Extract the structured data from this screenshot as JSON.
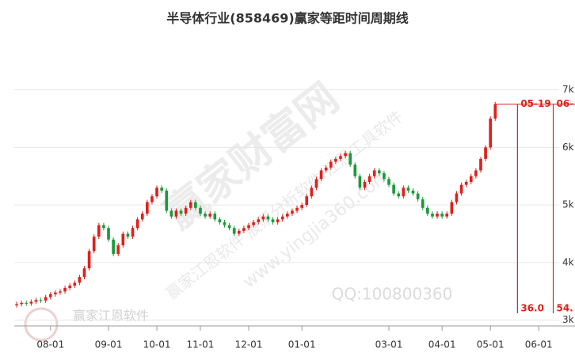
{
  "chart_data": {
    "type": "candlestick",
    "title": "半导体行业(858469)赢家等距时间周期线",
    "x": [
      0,
      1,
      2,
      3,
      4,
      5,
      6,
      7,
      8,
      9,
      10,
      11,
      12,
      13,
      14,
      15,
      16,
      17,
      18,
      19,
      20,
      21,
      22,
      23,
      24,
      25,
      26,
      27,
      28,
      29,
      30,
      31,
      32,
      33,
      34,
      35,
      36,
      37,
      38,
      39,
      40,
      41,
      42,
      43,
      44,
      45,
      46,
      47,
      48,
      49,
      50,
      51,
      52,
      53,
      54,
      55,
      56,
      57,
      58,
      59,
      60,
      61,
      62,
      63,
      64,
      65,
      66,
      67,
      68,
      69,
      70,
      71,
      72,
      73,
      74,
      75,
      76,
      77,
      78,
      79,
      80,
      81,
      82,
      83,
      84,
      85,
      86,
      87,
      88,
      89,
      90,
      91,
      92,
      93,
      94,
      95,
      96,
      97,
      98,
      99
    ],
    "open": [
      3260,
      3280,
      3300,
      3290,
      3320,
      3350,
      3340,
      3400,
      3450,
      3480,
      3500,
      3560,
      3600,
      3650,
      3750,
      3900,
      4200,
      4450,
      4650,
      4600,
      4400,
      4150,
      4300,
      4500,
      4450,
      4600,
      4750,
      4850,
      5050,
      5150,
      5300,
      5250,
      4900,
      4800,
      4900,
      4850,
      4950,
      5050,
      4950,
      4850,
      4800,
      4850,
      4750,
      4700,
      4650,
      4600,
      4500,
      4550,
      4600,
      4650,
      4700,
      4750,
      4800,
      4750,
      4700,
      4750,
      4800,
      4850,
      4900,
      4950,
      5000,
      5150,
      5300,
      5450,
      5600,
      5650,
      5750,
      5800,
      5850,
      5900,
      5700,
      5500,
      5300,
      5400,
      5500,
      5600,
      5550,
      5450,
      5350,
      5200,
      5150,
      5300,
      5250,
      5200,
      5100,
      4950,
      4850,
      4800,
      4850,
      4800,
      4850,
      5050,
      5200,
      5350,
      5400,
      5500,
      5600,
      5800,
      6000,
      6500
    ],
    "high": [
      3320,
      3340,
      3340,
      3360,
      3390,
      3390,
      3440,
      3490,
      3520,
      3540,
      3600,
      3640,
      3690,
      3790,
      3940,
      4240,
      4490,
      4690,
      4690,
      4640,
      4440,
      4340,
      4540,
      4540,
      4640,
      4790,
      4890,
      5090,
      5190,
      5340,
      5340,
      5290,
      4940,
      4940,
      4940,
      4990,
      5090,
      5090,
      4990,
      4890,
      4890,
      4890,
      4790,
      4740,
      4690,
      4640,
      4590,
      4640,
      4690,
      4740,
      4790,
      4840,
      4840,
      4790,
      4790,
      4840,
      4890,
      4940,
      4990,
      5040,
      5190,
      5340,
      5490,
      5640,
      5690,
      5790,
      5840,
      5890,
      5940,
      5940,
      5740,
      5540,
      5440,
      5540,
      5640,
      5640,
      5590,
      5490,
      5390,
      5240,
      5340,
      5340,
      5290,
      5240,
      5140,
      4990,
      4890,
      4890,
      4890,
      4890,
      5090,
      5240,
      5390,
      5440,
      5540,
      5640,
      5840,
      6040,
      6540,
      6790
    ],
    "low": [
      3220,
      3240,
      3250,
      3250,
      3280,
      3300,
      3300,
      3360,
      3410,
      3440,
      3460,
      3520,
      3560,
      3610,
      3710,
      3860,
      4160,
      4410,
      4560,
      4360,
      4110,
      4110,
      4260,
      4410,
      4410,
      4560,
      4710,
      4810,
      5010,
      5110,
      5210,
      4860,
      4760,
      4760,
      4810,
      4810,
      4910,
      4910,
      4810,
      4760,
      4760,
      4710,
      4660,
      4610,
      4560,
      4460,
      4460,
      4510,
      4560,
      4610,
      4660,
      4710,
      4710,
      4660,
      4660,
      4710,
      4760,
      4810,
      4860,
      4910,
      4960,
      5110,
      5260,
      5410,
      5560,
      5610,
      5710,
      5760,
      5810,
      5660,
      5460,
      5260,
      5260,
      5360,
      5460,
      5510,
      5410,
      5310,
      5160,
      5110,
      5110,
      5210,
      5160,
      5060,
      4910,
      4810,
      4760,
      4760,
      4760,
      4760,
      4810,
      5010,
      5160,
      5310,
      5360,
      5460,
      5560,
      5760,
      5960,
      6460
    ],
    "close": [
      3280,
      3300,
      3290,
      3320,
      3350,
      3340,
      3400,
      3450,
      3480,
      3500,
      3560,
      3600,
      3650,
      3750,
      3900,
      4200,
      4450,
      4650,
      4600,
      4400,
      4150,
      4300,
      4500,
      4450,
      4600,
      4750,
      4850,
      5050,
      5150,
      5300,
      5250,
      4900,
      4800,
      4900,
      4850,
      4950,
      5050,
      4950,
      4850,
      4800,
      4850,
      4750,
      4700,
      4650,
      4600,
      4500,
      4550,
      4600,
      4650,
      4700,
      4750,
      4800,
      4750,
      4700,
      4750,
      4800,
      4850,
      4900,
      4950,
      5000,
      5150,
      5300,
      5450,
      5600,
      5650,
      5750,
      5800,
      5850,
      5900,
      5700,
      5500,
      5300,
      5400,
      5500,
      5600,
      5550,
      5450,
      5350,
      5200,
      5150,
      5300,
      5250,
      5200,
      5100,
      4950,
      4850,
      4800,
      4850,
      4800,
      4850,
      5050,
      5200,
      5350,
      5400,
      5500,
      5600,
      5800,
      6000,
      6500,
      6750
    ],
    "up_color": "#e0201b",
    "down_color": "#1a9a3a",
    "xlim": [
      -0.5,
      115.5
    ],
    "xticks": [
      {
        "value": 7,
        "label": "08-01"
      },
      {
        "value": 19,
        "label": "09-01"
      },
      {
        "value": 29,
        "label": "10-01"
      },
      {
        "value": 38,
        "label": "11-01"
      },
      {
        "value": 48,
        "label": "12-01"
      },
      {
        "value": 59,
        "label": "01-01"
      },
      {
        "value": 77,
        "label": "03-01"
      },
      {
        "value": 88,
        "label": "04-01"
      },
      {
        "value": 98,
        "label": "05-01"
      },
      {
        "value": 108,
        "label": "06-01"
      }
    ],
    "ylim": [
      2900,
      7900
    ],
    "yticks": [
      {
        "value": 3000,
        "label": "3k"
      },
      {
        "value": 4000,
        "label": "4k"
      },
      {
        "value": 5000,
        "label": "5k"
      },
      {
        "value": 6000,
        "label": "6k"
      },
      {
        "value": 7000,
        "label": "7k"
      }
    ],
    "grid": true,
    "cycle_color": "#e0201b",
    "cycle_lines": [
      {
        "x": 103.6,
        "date": "05-19",
        "label": "36.0"
      },
      {
        "x": 111,
        "date": "06-",
        "label": "54."
      }
    ],
    "watermarks": [
      "赢家财富网",
      "赢家江恩软件 股票分析软件 江恩工具软件",
      "www.yingjia360.com",
      "QQ:100800360",
      "赢家江恩软件"
    ]
  }
}
